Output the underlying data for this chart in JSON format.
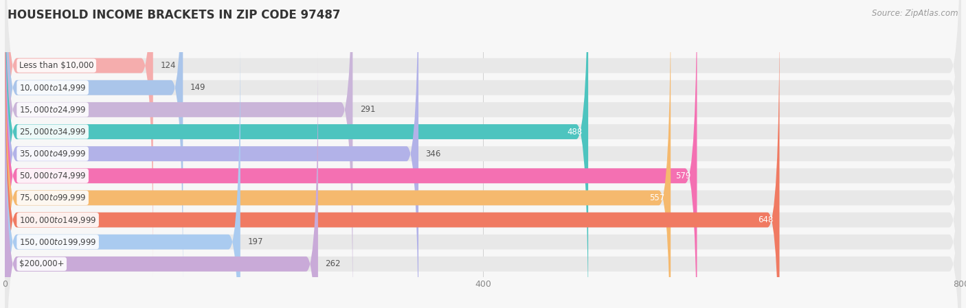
{
  "title": "HOUSEHOLD INCOME BRACKETS IN ZIP CODE 97487",
  "source": "Source: ZipAtlas.com",
  "categories": [
    "Less than $10,000",
    "$10,000 to $14,999",
    "$15,000 to $24,999",
    "$25,000 to $34,999",
    "$35,000 to $49,999",
    "$50,000 to $74,999",
    "$75,000 to $99,999",
    "$100,000 to $149,999",
    "$150,000 to $199,999",
    "$200,000+"
  ],
  "values": [
    124,
    149,
    291,
    488,
    346,
    579,
    557,
    648,
    197,
    262
  ],
  "bar_colors": [
    "#f5adad",
    "#aac5ea",
    "#cab5d9",
    "#4dc4bf",
    "#b2b2e8",
    "#f470b2",
    "#f5b96e",
    "#f07a62",
    "#aacbf0",
    "#c9aad8"
  ],
  "label_colors": [
    "#555555",
    "#555555",
    "#555555",
    "#ffffff",
    "#555555",
    "#ffffff",
    "#ffffff",
    "#ffffff",
    "#555555",
    "#555555"
  ],
  "bg_color": "#f7f7f7",
  "bar_bg_color": "#e8e8e8",
  "xlim": [
    0,
    800
  ],
  "xticks": [
    0,
    400,
    800
  ],
  "title_fontsize": 12,
  "source_fontsize": 8.5,
  "label_fontsize": 8.5,
  "bar_label_fontsize": 8.5
}
